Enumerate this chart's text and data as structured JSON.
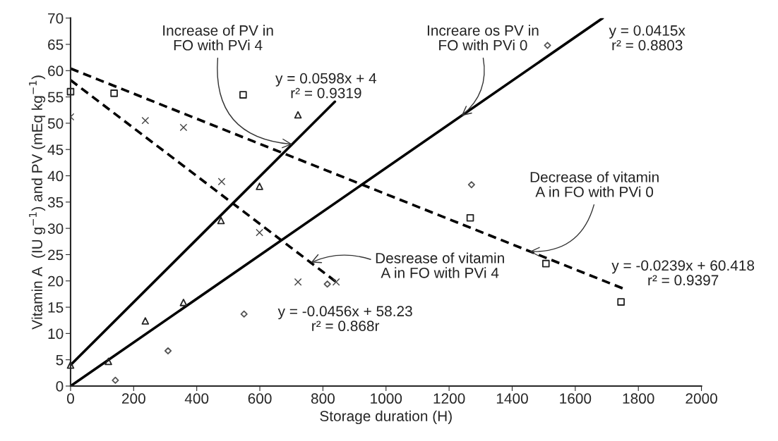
{
  "chart_data": {
    "type": "scatter",
    "xlabel": "Storage duration (H)",
    "ylabel": "Vitamin A  (IU g$^{−1}$) and PV (mEq kg$^{−1}$)",
    "xlim": [
      0,
      2000
    ],
    "xticks": [
      0,
      200,
      400,
      600,
      800,
      1000,
      1200,
      1400,
      1600,
      1800,
      2000
    ],
    "ylim": [
      0,
      70
    ],
    "yticks": [
      0,
      5,
      10,
      15,
      20,
      25,
      30,
      35,
      40,
      45,
      50,
      55,
      60,
      65,
      70
    ],
    "grid": false,
    "legend": false,
    "series": [
      {
        "type": "scatter",
        "marker": "square",
        "color": "#222222",
        "x": [
          0,
          138,
          547,
          1267,
          1507,
          1745
        ],
        "values": [
          56.0,
          55.7,
          55.4,
          32.0,
          23.3,
          16.0
        ]
      },
      {
        "type": "scatter",
        "marker": "cross",
        "color": "#444444",
        "x": [
          0,
          237,
          358,
          479,
          599,
          721,
          842
        ],
        "values": [
          51.2,
          50.5,
          49.2,
          38.9,
          29.2,
          19.8,
          19.8
        ]
      },
      {
        "type": "scatter",
        "marker": "triangle",
        "color": "#222222",
        "x": [
          0,
          120,
          237,
          358,
          477,
          599,
          721
        ],
        "values": [
          4.0,
          4.7,
          12.4,
          15.9,
          31.5,
          38.0,
          51.6
        ]
      },
      {
        "type": "scatter",
        "marker": "diamond",
        "color": "#555555",
        "x": [
          142,
          309,
          550,
          814,
          1271,
          1512
        ],
        "values": [
          1.1,
          6.7,
          13.7,
          19.4,
          38.3,
          64.8
        ]
      },
      {
        "type": "line",
        "line_style": "solid",
        "color": "#000000",
        "x": [
          0,
          838
        ],
        "values": [
          4.0,
          54.1
        ]
      },
      {
        "type": "line",
        "line_style": "solid",
        "color": "#000000",
        "x": [
          0,
          1687
        ],
        "values": [
          0.0,
          70.0
        ]
      },
      {
        "type": "line",
        "line_style": "dashed",
        "color": "#000000",
        "x": [
          0,
          1750
        ],
        "values": [
          60.4,
          18.6
        ]
      },
      {
        "type": "line",
        "line_style": "dashed",
        "color": "#000000",
        "x": [
          0,
          840
        ],
        "values": [
          58.2,
          19.9
        ]
      }
    ],
    "annotations": [
      {
        "text": "Increase of PV in\nFO with PVi 4",
        "x": 703,
        "y": 46
      },
      "y = 0.0598x + 4\nr² = 0.9319",
      {
        "text": "Increare os PV in\nFO with PVi 0",
        "x": 1239,
        "y": 51.4
      },
      "y = 0.0415x\nr² = 0.8803",
      {
        "text": "Decrease of vitamin\nA in FO with PVi 0",
        "x": 1455,
        "y": 25.6
      },
      "y = -0.0239x + 60.418\nr² = 0.9397",
      {
        "text": "Desrease of vitamin\nA in FO with PVi 4",
        "x": 762,
        "y": 23.5
      },
      "y = -0.0456x + 58.23\nr² = 0.868r"
    ]
  }
}
